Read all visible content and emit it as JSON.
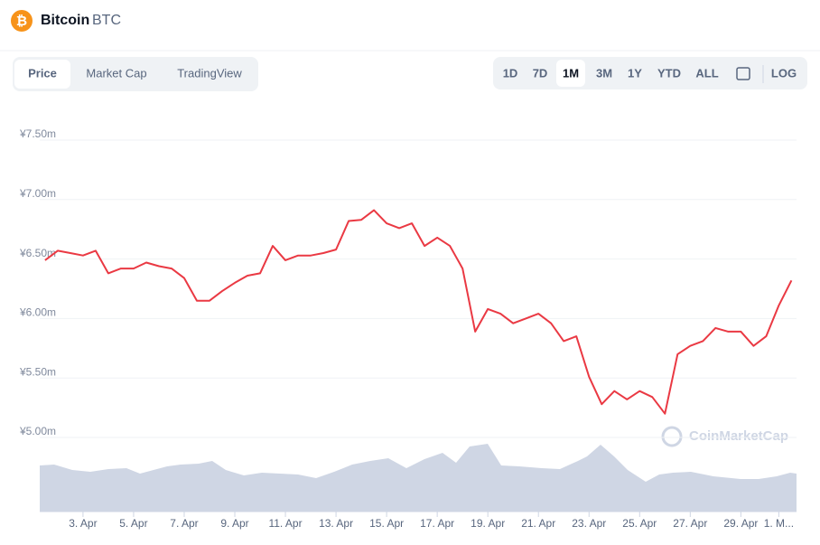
{
  "header": {
    "name": "Bitcoin",
    "symbol": "BTC"
  },
  "tabs": [
    "Price",
    "Market Cap",
    "TradingView"
  ],
  "ranges": [
    "1D",
    "7D",
    "1M",
    "3M",
    "1Y",
    "YTD",
    "ALL"
  ],
  "log_button": "LOG",
  "watermark": "CoinMarketCap",
  "chart_data": {
    "type": "line",
    "x": [
      1.5,
      2,
      2.5,
      3,
      3.5,
      4,
      4.5,
      5,
      5.5,
      6,
      6.5,
      7,
      7.5,
      8,
      8.5,
      9,
      9.5,
      10,
      10.5,
      11,
      11.5,
      12,
      12.5,
      13,
      13.5,
      14,
      14.5,
      15,
      15.5,
      16,
      16.5,
      17,
      17.5,
      18,
      18.5,
      19,
      19.5,
      20,
      20.5,
      21,
      21.5,
      22,
      22.5,
      23,
      23.5,
      24,
      24.5,
      25,
      25.5,
      26,
      26.5,
      27,
      27.5,
      28,
      28.5,
      29,
      29.5,
      30,
      30.5,
      31
    ],
    "series": [
      {
        "name": "Price",
        "color": "#ea3943",
        "values": [
          6490000,
          6570000,
          6550000,
          6530000,
          6570000,
          6380000,
          6420000,
          6420000,
          6470000,
          6440000,
          6420000,
          6340000,
          6150000,
          6150000,
          6230000,
          6300000,
          6360000,
          6380000,
          6610000,
          6490000,
          6530000,
          6530000,
          6550000,
          6580000,
          6820000,
          6830000,
          6910000,
          6800000,
          6760000,
          6800000,
          6610000,
          6680000,
          6610000,
          6420000,
          5890000,
          6080000,
          6040000,
          5960000,
          6000000,
          6040000,
          5960000,
          5810000,
          5850000,
          5510000,
          5280000,
          5390000,
          5320000,
          5390000,
          5340000,
          5200000,
          5700000,
          5770000,
          5810000,
          5920000,
          5890000,
          5890000,
          5770000,
          5850000,
          6110000,
          6320000
        ]
      }
    ],
    "xlim": [
      1.29,
      31.2
    ],
    "xticks": [
      {
        "value": 3,
        "label": "3. Apr"
      },
      {
        "value": 5,
        "label": "5. Apr"
      },
      {
        "value": 7,
        "label": "7. Apr"
      },
      {
        "value": 9,
        "label": "9. Apr"
      },
      {
        "value": 11,
        "label": "11. Apr"
      },
      {
        "value": 13,
        "label": "13. Apr"
      },
      {
        "value": 15,
        "label": "15. Apr"
      },
      {
        "value": 17,
        "label": "17. Apr"
      },
      {
        "value": 19,
        "label": "19. Apr"
      },
      {
        "value": 21,
        "label": "21. Apr"
      },
      {
        "value": 23,
        "label": "23. Apr"
      },
      {
        "value": 25,
        "label": "25. Apr"
      },
      {
        "value": 27,
        "label": "27. Apr"
      },
      {
        "value": 29,
        "label": "29. Apr"
      },
      {
        "value": 30.5,
        "label": "1. M..."
      }
    ],
    "ylim": [
      5000000,
      7500000
    ],
    "yticks": [
      {
        "value": 5000000,
        "label": "¥5.00m"
      },
      {
        "value": 5500000,
        "label": "¥5.50m"
      },
      {
        "value": 6000000,
        "label": "¥6.00m"
      },
      {
        "value": 6500000,
        "label": "¥6.50m"
      },
      {
        "value": 7000000,
        "label": "¥7.00m"
      },
      {
        "value": 7500000,
        "label": "¥7.50m"
      }
    ],
    "grid": true
  }
}
